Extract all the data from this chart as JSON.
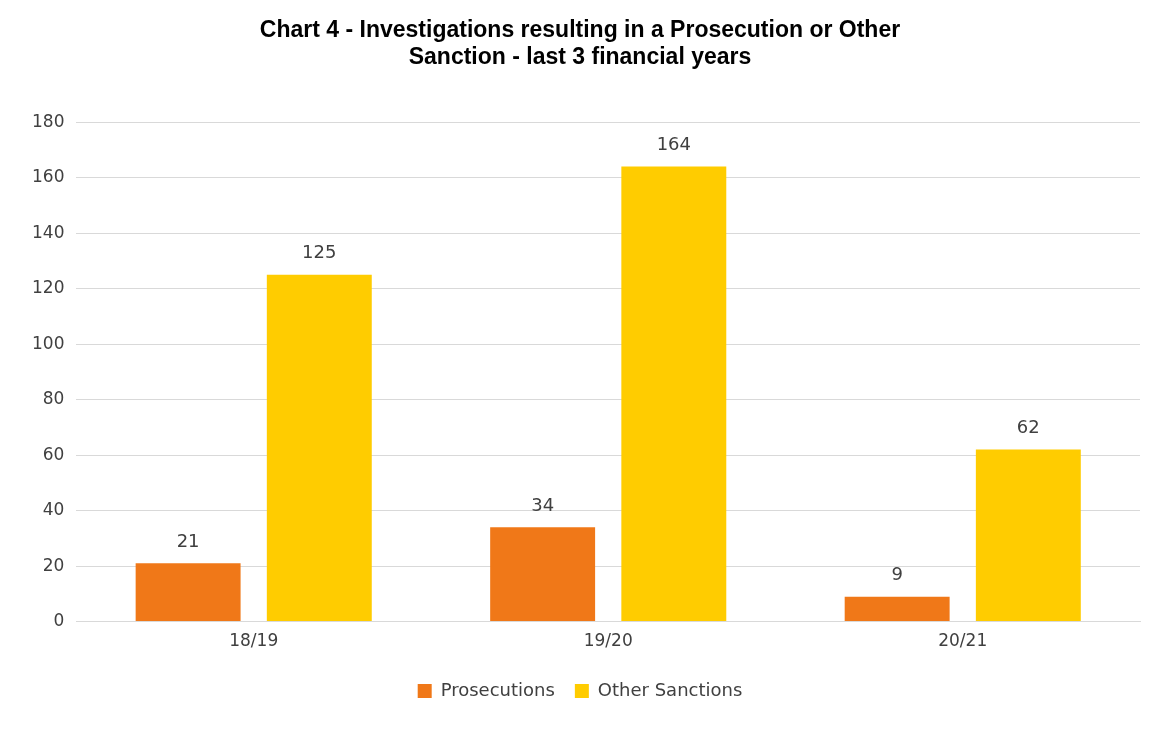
{
  "chart_data": {
    "type": "bar",
    "title": "Chart 4 - Investigations resulting in a Prosecution or Other Sanction - last 3 financial years",
    "categories": [
      "18/19",
      "19/20",
      "20/21"
    ],
    "series": [
      {
        "name": "Prosecutions",
        "color": "#f07818",
        "values": [
          21,
          34,
          9
        ]
      },
      {
        "name": "Other Sanctions",
        "color": "#ffcc00",
        "values": [
          125,
          164,
          62
        ]
      }
    ],
    "ylim": [
      0,
      180
    ],
    "yticks": [
      0,
      20,
      40,
      60,
      80,
      100,
      120,
      140,
      160,
      180
    ],
    "grid": "y",
    "legend": "bottom",
    "data_labels": true
  }
}
